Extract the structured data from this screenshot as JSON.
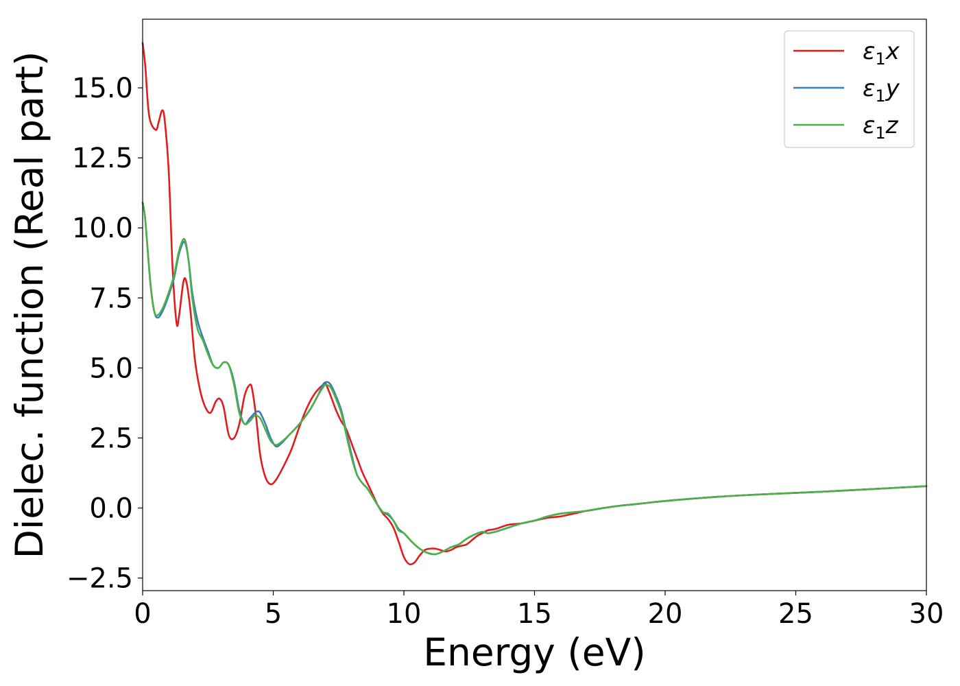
{
  "chart_data": {
    "type": "line",
    "title": "",
    "xlabel": "Energy (eV)",
    "ylabel": "Dielec. function (Real part)",
    "xlim": [
      0,
      30
    ],
    "ylim": [
      -2.95,
      17.45
    ],
    "xticks": [
      0,
      5,
      10,
      15,
      20,
      25,
      30
    ],
    "xtick_labels": [
      "0",
      "5",
      "10",
      "15",
      "20",
      "25",
      "30"
    ],
    "yticks": [
      -2.5,
      0.0,
      2.5,
      5.0,
      7.5,
      10.0,
      12.5,
      15.0
    ],
    "ytick_labels": [
      "−2.5",
      "0.0",
      "2.5",
      "5.0",
      "7.5",
      "10.0",
      "12.5",
      "15.0"
    ],
    "grid": false,
    "legend_position": "top-right",
    "series": [
      {
        "name": "ε₁x",
        "legend": {
          "base": "ε",
          "sub": "1",
          "suffix": "x"
        },
        "color": "#e41a1c",
        "x": [
          0.0,
          0.1,
          0.25,
          0.5,
          0.62,
          0.75,
          0.85,
          1.0,
          1.15,
          1.3,
          1.4,
          1.6,
          1.8,
          2.0,
          2.2,
          2.4,
          2.6,
          2.8,
          2.95,
          3.1,
          3.3,
          3.5,
          3.7,
          3.9,
          4.1,
          4.2,
          4.35,
          4.5,
          4.7,
          4.9,
          5.1,
          5.4,
          5.7,
          6.0,
          6.3,
          6.6,
          6.9,
          7.0,
          7.2,
          7.4,
          7.6,
          7.8,
          8.0,
          8.2,
          8.4,
          8.6,
          8.8,
          9.0,
          9.2,
          9.4,
          9.6,
          9.8,
          10.0,
          10.2,
          10.4,
          10.6,
          10.8,
          11.0,
          11.2,
          11.4,
          11.6,
          11.8,
          12.0,
          12.2,
          12.4,
          12.6,
          12.8,
          13.0,
          13.2,
          13.5,
          14.0,
          14.5,
          15.0,
          15.5,
          16.0,
          16.5,
          17.0,
          18.0,
          19.0,
          20.0,
          22.0,
          24.0,
          26.0,
          28.0,
          30.0
        ],
        "y": [
          16.6,
          15.8,
          14.0,
          13.5,
          13.8,
          14.2,
          13.8,
          12.0,
          8.5,
          6.6,
          6.9,
          8.2,
          7.3,
          5.3,
          4.2,
          3.6,
          3.4,
          3.8,
          3.9,
          3.6,
          2.6,
          2.5,
          3.0,
          4.0,
          4.4,
          4.2,
          3.2,
          1.9,
          1.1,
          0.85,
          1.0,
          1.5,
          2.1,
          2.9,
          3.6,
          4.1,
          4.4,
          4.45,
          4.0,
          3.5,
          3.1,
          2.8,
          2.3,
          1.8,
          1.3,
          0.9,
          0.5,
          0.1,
          -0.2,
          -0.4,
          -0.7,
          -1.2,
          -1.75,
          -2.0,
          -1.95,
          -1.7,
          -1.5,
          -1.45,
          -1.45,
          -1.5,
          -1.55,
          -1.5,
          -1.4,
          -1.35,
          -1.3,
          -1.15,
          -1.0,
          -0.9,
          -0.8,
          -0.75,
          -0.6,
          -0.55,
          -0.45,
          -0.35,
          -0.3,
          -0.2,
          -0.1,
          0.05,
          0.15,
          0.25,
          0.4,
          0.5,
          0.58,
          0.68,
          0.78
        ]
      },
      {
        "name": "ε₁y",
        "legend": {
          "base": "ε",
          "sub": "1",
          "suffix": "y"
        },
        "color": "#377eb8",
        "x": [
          0.0,
          0.1,
          0.3,
          0.45,
          0.6,
          0.8,
          1.0,
          1.2,
          1.4,
          1.6,
          1.75,
          1.9,
          2.1,
          2.3,
          2.5,
          2.7,
          2.9,
          3.1,
          3.3,
          3.5,
          3.7,
          3.9,
          4.1,
          4.3,
          4.4,
          4.5,
          4.7,
          4.9,
          5.1,
          5.3,
          5.6,
          6.0,
          6.4,
          6.7,
          6.9,
          7.05,
          7.2,
          7.4,
          7.6,
          7.8,
          8.0,
          8.2,
          8.4,
          8.6,
          8.8,
          9.0,
          9.2,
          9.4,
          9.6,
          9.8,
          10.0,
          10.3,
          10.6,
          10.9,
          11.2,
          11.5,
          11.8,
          12.1,
          12.4,
          12.7,
          13.0,
          13.2,
          13.5,
          14.0,
          14.5,
          15.0,
          15.5,
          16.0,
          16.5,
          17.0,
          18.0,
          19.0,
          20.0,
          22.0,
          24.0,
          26.0,
          28.0,
          30.0
        ],
        "y": [
          10.9,
          10.3,
          8.0,
          7.0,
          6.8,
          7.1,
          7.6,
          8.2,
          9.1,
          9.5,
          8.9,
          7.7,
          6.7,
          6.1,
          5.6,
          5.1,
          5.0,
          5.2,
          5.1,
          4.5,
          3.5,
          3.0,
          3.2,
          3.4,
          3.45,
          3.4,
          3.0,
          2.5,
          2.2,
          2.3,
          2.6,
          3.0,
          3.5,
          4.0,
          4.4,
          4.5,
          4.4,
          4.0,
          3.5,
          2.7,
          1.9,
          1.2,
          0.9,
          0.7,
          0.4,
          0.1,
          -0.15,
          -0.25,
          -0.45,
          -0.75,
          -0.9,
          -1.2,
          -1.45,
          -1.6,
          -1.65,
          -1.55,
          -1.4,
          -1.3,
          -1.1,
          -0.95,
          -0.85,
          -0.9,
          -0.85,
          -0.7,
          -0.55,
          -0.45,
          -0.3,
          -0.2,
          -0.15,
          -0.1,
          0.05,
          0.15,
          0.25,
          0.4,
          0.5,
          0.58,
          0.68,
          0.78
        ]
      },
      {
        "name": "ε₁z",
        "legend": {
          "base": "ε",
          "sub": "1",
          "suffix": "z"
        },
        "color": "#4daf4a",
        "x": [
          0.0,
          0.1,
          0.3,
          0.45,
          0.6,
          0.8,
          1.0,
          1.2,
          1.4,
          1.6,
          1.75,
          1.9,
          2.1,
          2.3,
          2.5,
          2.7,
          2.9,
          3.1,
          3.3,
          3.5,
          3.7,
          3.9,
          4.1,
          4.3,
          4.5,
          4.7,
          4.9,
          5.1,
          5.3,
          5.6,
          6.0,
          6.4,
          6.7,
          6.9,
          7.0,
          7.2,
          7.4,
          7.6,
          7.8,
          8.0,
          8.2,
          8.4,
          8.6,
          8.8,
          9.0,
          9.2,
          9.4,
          9.6,
          9.8,
          10.0,
          10.3,
          10.6,
          10.9,
          11.2,
          11.5,
          11.8,
          12.1,
          12.4,
          12.7,
          13.0,
          13.2,
          13.5,
          14.0,
          14.5,
          15.0,
          15.5,
          16.0,
          16.5,
          17.0,
          18.0,
          19.0,
          20.0,
          22.0,
          24.0,
          26.0,
          28.0,
          30.0
        ],
        "y": [
          10.9,
          10.3,
          8.0,
          7.0,
          6.9,
          7.2,
          7.7,
          8.3,
          9.2,
          9.6,
          8.9,
          7.5,
          6.4,
          6.0,
          5.5,
          5.1,
          5.0,
          5.2,
          5.1,
          4.4,
          3.4,
          3.0,
          3.1,
          3.3,
          3.2,
          2.8,
          2.4,
          2.25,
          2.35,
          2.6,
          3.0,
          3.5,
          4.0,
          4.3,
          4.4,
          4.3,
          3.9,
          3.4,
          2.6,
          1.8,
          1.2,
          0.9,
          0.7,
          0.4,
          0.1,
          -0.15,
          -0.2,
          -0.45,
          -0.8,
          -0.9,
          -1.2,
          -1.45,
          -1.6,
          -1.65,
          -1.55,
          -1.4,
          -1.3,
          -1.1,
          -0.95,
          -0.85,
          -0.9,
          -0.85,
          -0.7,
          -0.55,
          -0.45,
          -0.3,
          -0.2,
          -0.15,
          -0.1,
          0.05,
          0.15,
          0.25,
          0.4,
          0.5,
          0.58,
          0.68,
          0.78
        ]
      }
    ]
  }
}
